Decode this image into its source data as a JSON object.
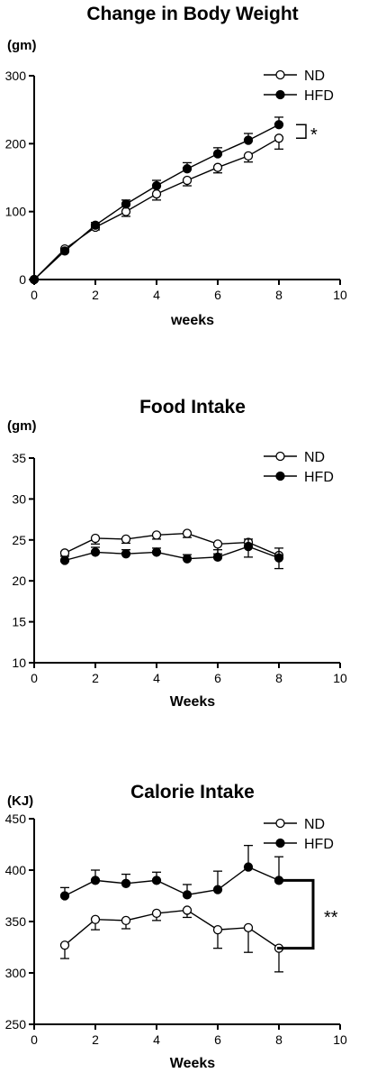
{
  "chart_data": [
    {
      "type": "line",
      "title": "Change in Body Weight",
      "unit_label": "(gm)",
      "xlabel": "weeks",
      "ylabel": "",
      "xlim": [
        0,
        10
      ],
      "ylim": [
        0,
        300
      ],
      "xticks": [
        0,
        2,
        4,
        6,
        8,
        10
      ],
      "yticks": [
        0,
        100,
        200,
        300
      ],
      "legend_position": "top-right",
      "significance": "*",
      "series": [
        {
          "name": "ND",
          "marker": "open-circle",
          "x": [
            0,
            1,
            2,
            3,
            4,
            5,
            6,
            7,
            8
          ],
          "y": [
            0,
            45,
            77,
            100,
            126,
            146,
            165,
            182,
            208
          ],
          "error": [
            0,
            3,
            4,
            7,
            9,
            8,
            8,
            9,
            16
          ]
        },
        {
          "name": "HFD",
          "marker": "filled-circle",
          "x": [
            0,
            1,
            2,
            3,
            4,
            5,
            6,
            7,
            8
          ],
          "y": [
            0,
            42,
            80,
            111,
            138,
            163,
            185,
            205,
            228
          ],
          "error": [
            0,
            3,
            4,
            6,
            8,
            9,
            9,
            10,
            11
          ]
        }
      ]
    },
    {
      "type": "line",
      "title": "Food Intake",
      "unit_label": "(gm)",
      "xlabel": "Weeks",
      "ylabel": "",
      "xlim": [
        0,
        10
      ],
      "ylim": [
        10,
        35
      ],
      "xticks": [
        0,
        2,
        4,
        6,
        8,
        10
      ],
      "yticks": [
        10,
        15,
        20,
        25,
        30,
        35
      ],
      "legend_position": "top-right",
      "significance": "",
      "series": [
        {
          "name": "ND",
          "marker": "open-circle",
          "x": [
            1,
            2,
            3,
            4,
            5,
            6,
            7,
            8
          ],
          "y": [
            23.4,
            25.2,
            25.1,
            25.6,
            25.8,
            24.5,
            24.7,
            23.1
          ],
          "error": [
            1.0,
            0.7,
            0.5,
            0.5,
            0.5,
            1.2,
            1.8,
            1.6
          ]
        },
        {
          "name": "HFD",
          "marker": "filled-circle",
          "x": [
            1,
            2,
            3,
            4,
            5,
            6,
            7,
            8
          ],
          "y": [
            22.5,
            23.5,
            23.3,
            23.5,
            22.7,
            22.9,
            24.2,
            22.8
          ],
          "error": [
            0.5,
            0.6,
            0.5,
            0.5,
            0.5,
            0.9,
            0.9,
            1.2
          ]
        }
      ]
    },
    {
      "type": "line",
      "title": "Calorie Intake",
      "unit_label": "(KJ)",
      "xlabel": "Weeks",
      "ylabel": "",
      "xlim": [
        0,
        10
      ],
      "ylim": [
        250,
        450
      ],
      "xticks": [
        0,
        2,
        4,
        6,
        8,
        10
      ],
      "yticks": [
        250,
        300,
        350,
        400,
        450
      ],
      "legend_position": "top-right",
      "significance": "**",
      "series": [
        {
          "name": "ND",
          "marker": "open-circle",
          "x": [
            1,
            2,
            3,
            4,
            5,
            6,
            7,
            8
          ],
          "y": [
            327,
            352,
            351,
            358,
            361,
            342,
            344,
            324
          ],
          "error": [
            13,
            10,
            8,
            7,
            7,
            18,
            24,
            23
          ]
        },
        {
          "name": "HFD",
          "marker": "filled-circle",
          "x": [
            1,
            2,
            3,
            4,
            5,
            6,
            7,
            8
          ],
          "y": [
            375,
            390,
            387,
            390,
            376,
            381,
            403,
            390
          ],
          "error": [
            8,
            10,
            9,
            8,
            10,
            18,
            21,
            23
          ]
        }
      ]
    }
  ]
}
